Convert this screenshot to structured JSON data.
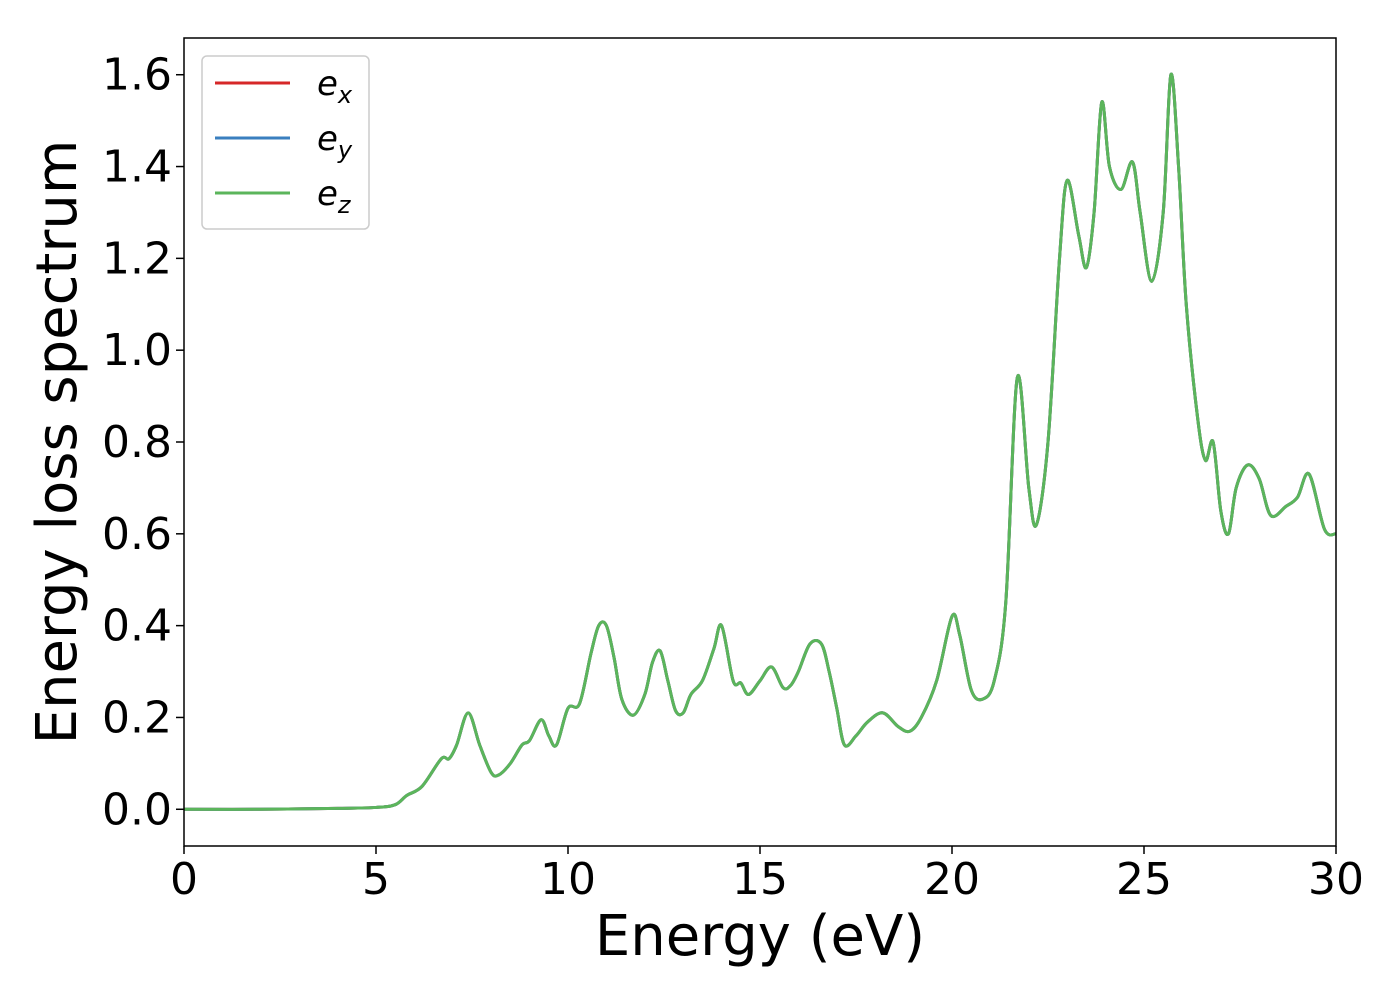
{
  "chart_data": {
    "type": "line",
    "xlabel": "Energy (eV)",
    "ylabel": "Energy loss spectrum",
    "xlim": [
      0,
      30
    ],
    "ylim": [
      -0.08,
      1.68
    ],
    "xticks": [
      0,
      5,
      10,
      15,
      20,
      25,
      30
    ],
    "xtick_labels": [
      "0",
      "5",
      "10",
      "15",
      "20",
      "25",
      "30"
    ],
    "yticks": [
      0.0,
      0.2,
      0.4,
      0.6,
      0.8,
      1.0,
      1.2,
      1.4,
      1.6
    ],
    "ytick_labels": [
      "0.0",
      "0.2",
      "0.4",
      "0.6",
      "0.8",
      "1.0",
      "1.2",
      "1.4",
      "1.6"
    ],
    "grid": false,
    "legend_position": "top-left",
    "series": [
      {
        "name": "e",
        "sub": "x",
        "color": "#d62728",
        "x": [
          0,
          2,
          4,
          5,
          5.5,
          5.8,
          6.2,
          6.7,
          6.9,
          7.1,
          7.4,
          7.7,
          8.0,
          8.2,
          8.5,
          8.8,
          9.0,
          9.3,
          9.5,
          9.7,
          10.0,
          10.3,
          10.6,
          10.8,
          11.0,
          11.2,
          11.4,
          11.7,
          12.0,
          12.2,
          12.4,
          12.6,
          12.8,
          13.0,
          13.2,
          13.5,
          13.8,
          14.0,
          14.3,
          14.5,
          14.7,
          15.0,
          15.3,
          15.6,
          15.8,
          16.0,
          16.3,
          16.6,
          16.8,
          17.0,
          17.2,
          17.5,
          17.8,
          18.2,
          18.6,
          18.9,
          19.2,
          19.6,
          20.0,
          20.2,
          20.5,
          20.8,
          21.1,
          21.4,
          21.7,
          22.0,
          22.2,
          22.5,
          22.8,
          23.0,
          23.3,
          23.5,
          23.7,
          23.9,
          24.1,
          24.4,
          24.7,
          24.9,
          25.2,
          25.5,
          25.7,
          25.9,
          26.1,
          26.4,
          26.6,
          26.8,
          27.0,
          27.2,
          27.4,
          27.7,
          28.0,
          28.3,
          28.7,
          29.0,
          29.3,
          29.7,
          30.0
        ],
        "y": [
          0.0,
          0.0,
          0.002,
          0.004,
          0.01,
          0.03,
          0.05,
          0.11,
          0.11,
          0.14,
          0.21,
          0.14,
          0.08,
          0.075,
          0.1,
          0.14,
          0.15,
          0.195,
          0.16,
          0.14,
          0.22,
          0.23,
          0.34,
          0.4,
          0.4,
          0.33,
          0.24,
          0.205,
          0.25,
          0.32,
          0.345,
          0.28,
          0.215,
          0.21,
          0.25,
          0.28,
          0.35,
          0.4,
          0.28,
          0.275,
          0.25,
          0.28,
          0.31,
          0.265,
          0.27,
          0.3,
          0.36,
          0.36,
          0.3,
          0.22,
          0.14,
          0.16,
          0.19,
          0.21,
          0.18,
          0.17,
          0.2,
          0.28,
          0.42,
          0.38,
          0.26,
          0.24,
          0.28,
          0.45,
          0.94,
          0.7,
          0.62,
          0.8,
          1.2,
          1.37,
          1.25,
          1.18,
          1.3,
          1.54,
          1.4,
          1.35,
          1.41,
          1.3,
          1.15,
          1.3,
          1.6,
          1.4,
          1.1,
          0.85,
          0.76,
          0.8,
          0.65,
          0.6,
          0.7,
          0.75,
          0.72,
          0.64,
          0.66,
          0.68,
          0.73,
          0.61,
          0.6
        ]
      },
      {
        "name": "e",
        "sub": "y",
        "color": "#3a7fbf",
        "x": [
          0,
          2,
          4,
          5,
          5.5,
          5.8,
          6.2,
          6.7,
          6.9,
          7.1,
          7.4,
          7.7,
          8.0,
          8.2,
          8.5,
          8.8,
          9.0,
          9.3,
          9.5,
          9.7,
          10.0,
          10.3,
          10.6,
          10.8,
          11.0,
          11.2,
          11.4,
          11.7,
          12.0,
          12.2,
          12.4,
          12.6,
          12.8,
          13.0,
          13.2,
          13.5,
          13.8,
          14.0,
          14.3,
          14.5,
          14.7,
          15.0,
          15.3,
          15.6,
          15.8,
          16.0,
          16.3,
          16.6,
          16.8,
          17.0,
          17.2,
          17.5,
          17.8,
          18.2,
          18.6,
          18.9,
          19.2,
          19.6,
          20.0,
          20.2,
          20.5,
          20.8,
          21.1,
          21.4,
          21.7,
          22.0,
          22.2,
          22.5,
          22.8,
          23.0,
          23.3,
          23.5,
          23.7,
          23.9,
          24.1,
          24.4,
          24.7,
          24.9,
          25.2,
          25.5,
          25.7,
          25.9,
          26.1,
          26.4,
          26.6,
          26.8,
          27.0,
          27.2,
          27.4,
          27.7,
          28.0,
          28.3,
          28.7,
          29.0,
          29.3,
          29.7,
          30.0
        ],
        "y": [
          0.0,
          0.0,
          0.002,
          0.004,
          0.01,
          0.03,
          0.05,
          0.11,
          0.11,
          0.14,
          0.21,
          0.14,
          0.08,
          0.075,
          0.1,
          0.14,
          0.15,
          0.195,
          0.16,
          0.14,
          0.22,
          0.23,
          0.34,
          0.4,
          0.4,
          0.33,
          0.24,
          0.205,
          0.25,
          0.32,
          0.345,
          0.28,
          0.215,
          0.21,
          0.25,
          0.28,
          0.35,
          0.4,
          0.28,
          0.275,
          0.25,
          0.28,
          0.31,
          0.265,
          0.27,
          0.3,
          0.36,
          0.36,
          0.3,
          0.22,
          0.14,
          0.16,
          0.19,
          0.21,
          0.18,
          0.17,
          0.2,
          0.28,
          0.42,
          0.38,
          0.26,
          0.24,
          0.28,
          0.45,
          0.94,
          0.7,
          0.62,
          0.8,
          1.2,
          1.37,
          1.25,
          1.18,
          1.3,
          1.54,
          1.4,
          1.35,
          1.41,
          1.3,
          1.15,
          1.3,
          1.6,
          1.4,
          1.1,
          0.85,
          0.76,
          0.8,
          0.65,
          0.6,
          0.7,
          0.75,
          0.72,
          0.64,
          0.66,
          0.68,
          0.73,
          0.61,
          0.6
        ]
      },
      {
        "name": "e",
        "sub": "z",
        "color": "#5bb55b",
        "x": [
          0,
          2,
          4,
          5,
          5.5,
          5.8,
          6.2,
          6.7,
          6.9,
          7.1,
          7.4,
          7.7,
          8.0,
          8.2,
          8.5,
          8.8,
          9.0,
          9.3,
          9.5,
          9.7,
          10.0,
          10.3,
          10.6,
          10.8,
          11.0,
          11.2,
          11.4,
          11.7,
          12.0,
          12.2,
          12.4,
          12.6,
          12.8,
          13.0,
          13.2,
          13.5,
          13.8,
          14.0,
          14.3,
          14.5,
          14.7,
          15.0,
          15.3,
          15.6,
          15.8,
          16.0,
          16.3,
          16.6,
          16.8,
          17.0,
          17.2,
          17.5,
          17.8,
          18.2,
          18.6,
          18.9,
          19.2,
          19.6,
          20.0,
          20.2,
          20.5,
          20.8,
          21.1,
          21.4,
          21.7,
          22.0,
          22.2,
          22.5,
          22.8,
          23.0,
          23.3,
          23.5,
          23.7,
          23.9,
          24.1,
          24.4,
          24.7,
          24.9,
          25.2,
          25.5,
          25.7,
          25.9,
          26.1,
          26.4,
          26.6,
          26.8,
          27.0,
          27.2,
          27.4,
          27.7,
          28.0,
          28.3,
          28.7,
          29.0,
          29.3,
          29.7,
          30.0
        ],
        "y": [
          0.0,
          0.0,
          0.002,
          0.004,
          0.01,
          0.03,
          0.05,
          0.11,
          0.11,
          0.14,
          0.21,
          0.14,
          0.08,
          0.075,
          0.1,
          0.14,
          0.15,
          0.195,
          0.16,
          0.14,
          0.22,
          0.23,
          0.34,
          0.4,
          0.4,
          0.33,
          0.24,
          0.205,
          0.25,
          0.32,
          0.345,
          0.28,
          0.215,
          0.21,
          0.25,
          0.28,
          0.35,
          0.4,
          0.28,
          0.275,
          0.25,
          0.28,
          0.31,
          0.265,
          0.27,
          0.3,
          0.36,
          0.36,
          0.3,
          0.22,
          0.14,
          0.16,
          0.19,
          0.21,
          0.18,
          0.17,
          0.2,
          0.28,
          0.42,
          0.38,
          0.26,
          0.24,
          0.28,
          0.45,
          0.94,
          0.7,
          0.62,
          0.8,
          1.2,
          1.37,
          1.25,
          1.18,
          1.3,
          1.54,
          1.4,
          1.35,
          1.41,
          1.3,
          1.15,
          1.3,
          1.6,
          1.4,
          1.1,
          0.85,
          0.76,
          0.8,
          0.65,
          0.6,
          0.7,
          0.75,
          0.72,
          0.64,
          0.66,
          0.68,
          0.73,
          0.61,
          0.6
        ]
      }
    ]
  }
}
